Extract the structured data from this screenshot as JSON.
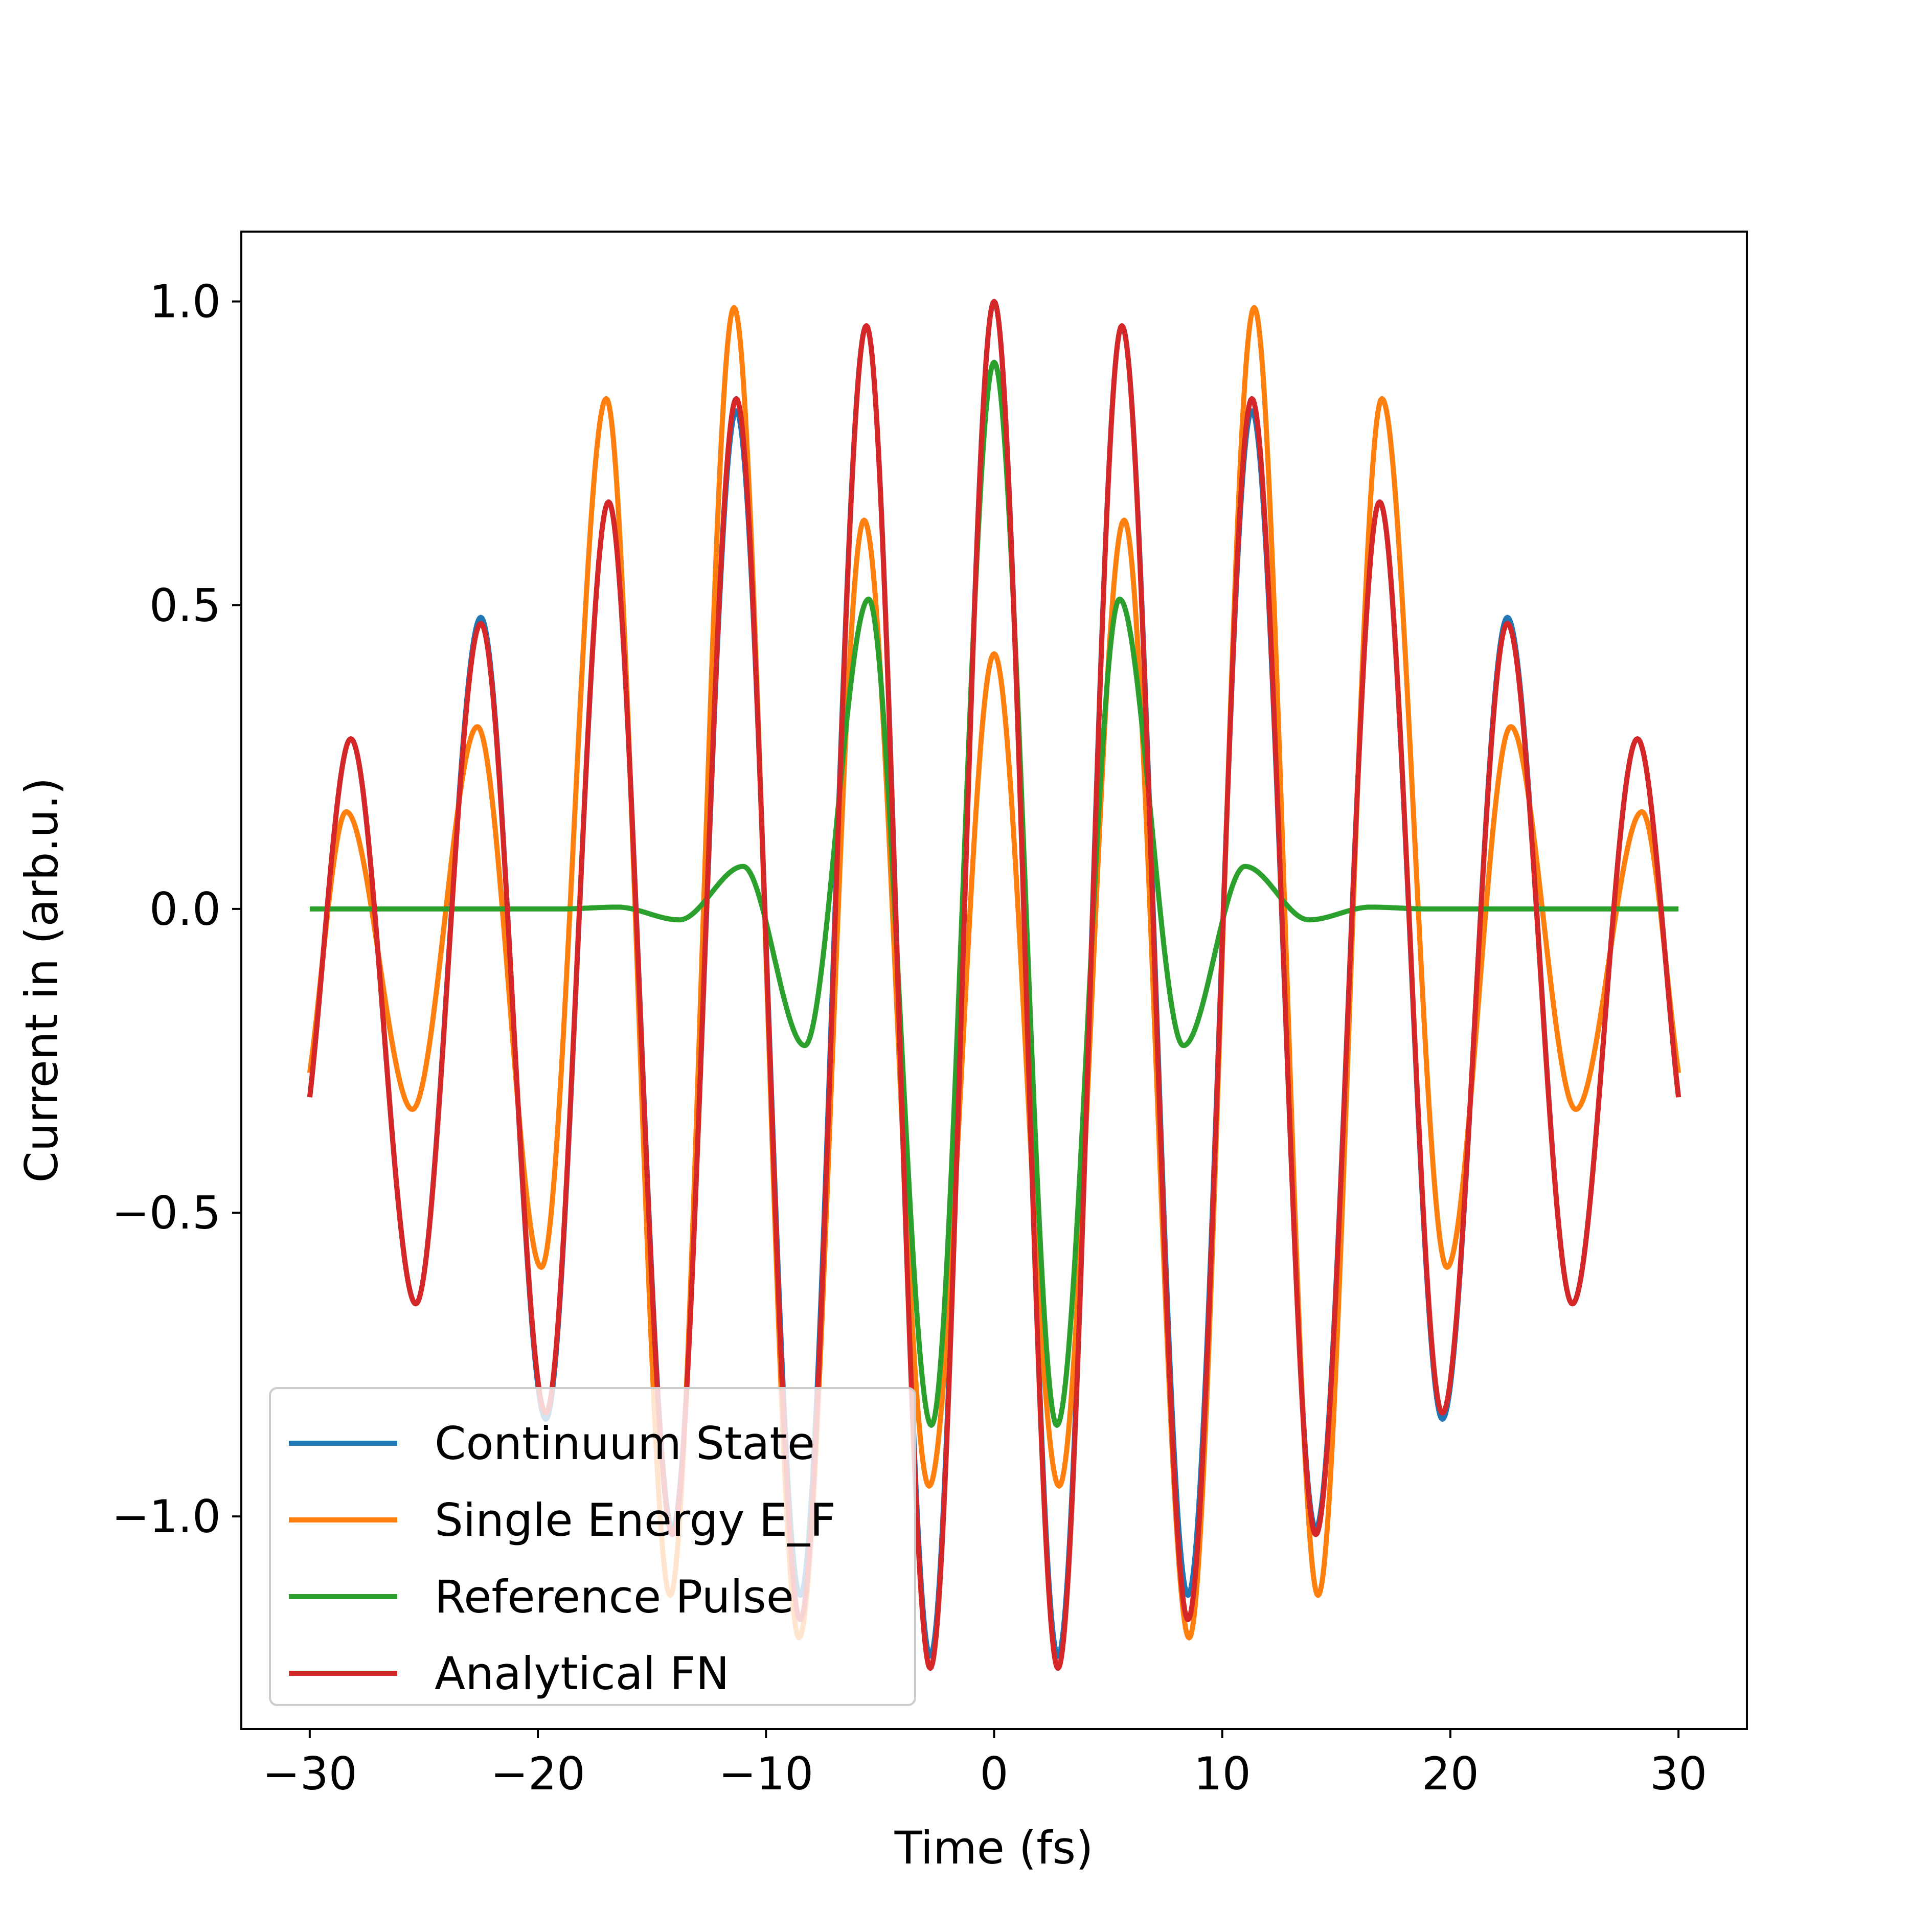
{
  "chart_data": {
    "type": "line",
    "title": "",
    "xlabel": "Time (fs)",
    "ylabel": "Current in (arb.u.)",
    "xlim": [
      -33,
      33
    ],
    "ylim": [
      -1.35,
      1.115
    ],
    "xticks": [
      -30,
      -20,
      -10,
      0,
      10,
      20,
      30
    ],
    "xtick_labels": [
      "−30",
      "−20",
      "−10",
      "0",
      "10",
      "20",
      "30"
    ],
    "yticks": [
      -1.0,
      -0.5,
      0.0,
      0.5,
      1.0
    ],
    "ytick_labels": [
      "−1.0",
      "−0.5",
      "0.0",
      "0.5",
      "1.0"
    ],
    "grid": false,
    "legend_position": "lower-left",
    "series": [
      {
        "name": "Continuum State",
        "color": "#1f77b4",
        "x": [
          -30,
          -28.2,
          -25.35,
          -22.5,
          -19.65,
          -16.9,
          -14.1,
          -11.3,
          -8.5,
          -5.6,
          -2.8,
          0,
          2.8,
          5.6,
          8.5,
          11.3,
          14.1,
          16.9,
          19.65,
          22.5,
          25.35,
          28.2,
          30
        ],
        "y": [
          -0.31,
          0.28,
          -0.65,
          0.48,
          -0.84,
          0.67,
          -1.02,
          0.82,
          -1.13,
          0.96,
          -1.23,
          1.0,
          -1.23,
          0.96,
          -1.13,
          0.82,
          -1.02,
          0.67,
          -0.84,
          0.48,
          -0.65,
          0.28,
          -0.31
        ]
      },
      {
        "name": "Single Energy E_F",
        "color": "#ff7f0e",
        "x": [
          -30,
          -28.4,
          -25.5,
          -22.65,
          -19.85,
          -17,
          -14.2,
          -11.4,
          -8.55,
          -5.7,
          -2.85,
          0,
          2.85,
          5.7,
          8.55,
          11.4,
          14.2,
          17,
          19.85,
          22.65,
          25.5,
          28.4,
          30
        ],
        "y": [
          -0.27,
          0.16,
          -0.33,
          0.3,
          -0.59,
          0.84,
          -1.13,
          0.99,
          -1.2,
          0.64,
          -0.95,
          0.42,
          -0.95,
          0.64,
          -1.2,
          0.99,
          -1.13,
          0.84,
          -0.59,
          0.3,
          -0.33,
          0.16,
          -0.27
        ]
      },
      {
        "name": "Reference Pulse",
        "color": "#2ca02c",
        "x": [
          -30,
          -19,
          -16.5,
          -13.8,
          -11,
          -8.3,
          -5.5,
          -2.75,
          0,
          2.75,
          5.5,
          8.3,
          11,
          13.8,
          16.5,
          19,
          30
        ],
        "y": [
          0.0,
          0.0,
          0.003,
          -0.018,
          0.07,
          -0.225,
          0.51,
          -0.85,
          0.9,
          -0.85,
          0.51,
          -0.225,
          0.07,
          -0.018,
          0.003,
          0.0,
          0.0
        ]
      },
      {
        "name": "Analytical FN",
        "color": "#d62728",
        "x": [
          -30,
          -28.2,
          -25.35,
          -22.5,
          -19.65,
          -16.9,
          -14.1,
          -11.3,
          -8.5,
          -5.6,
          -2.8,
          0,
          2.8,
          5.6,
          8.5,
          11.3,
          14.1,
          16.9,
          19.65,
          22.5,
          25.35,
          28.2,
          30
        ],
        "y": [
          -0.31,
          0.28,
          -0.65,
          0.47,
          -0.83,
          0.67,
          -1.03,
          0.84,
          -1.17,
          0.96,
          -1.25,
          1.0,
          -1.25,
          0.96,
          -1.17,
          0.84,
          -1.03,
          0.67,
          -0.83,
          0.47,
          -0.65,
          0.28,
          -0.31
        ]
      }
    ]
  }
}
